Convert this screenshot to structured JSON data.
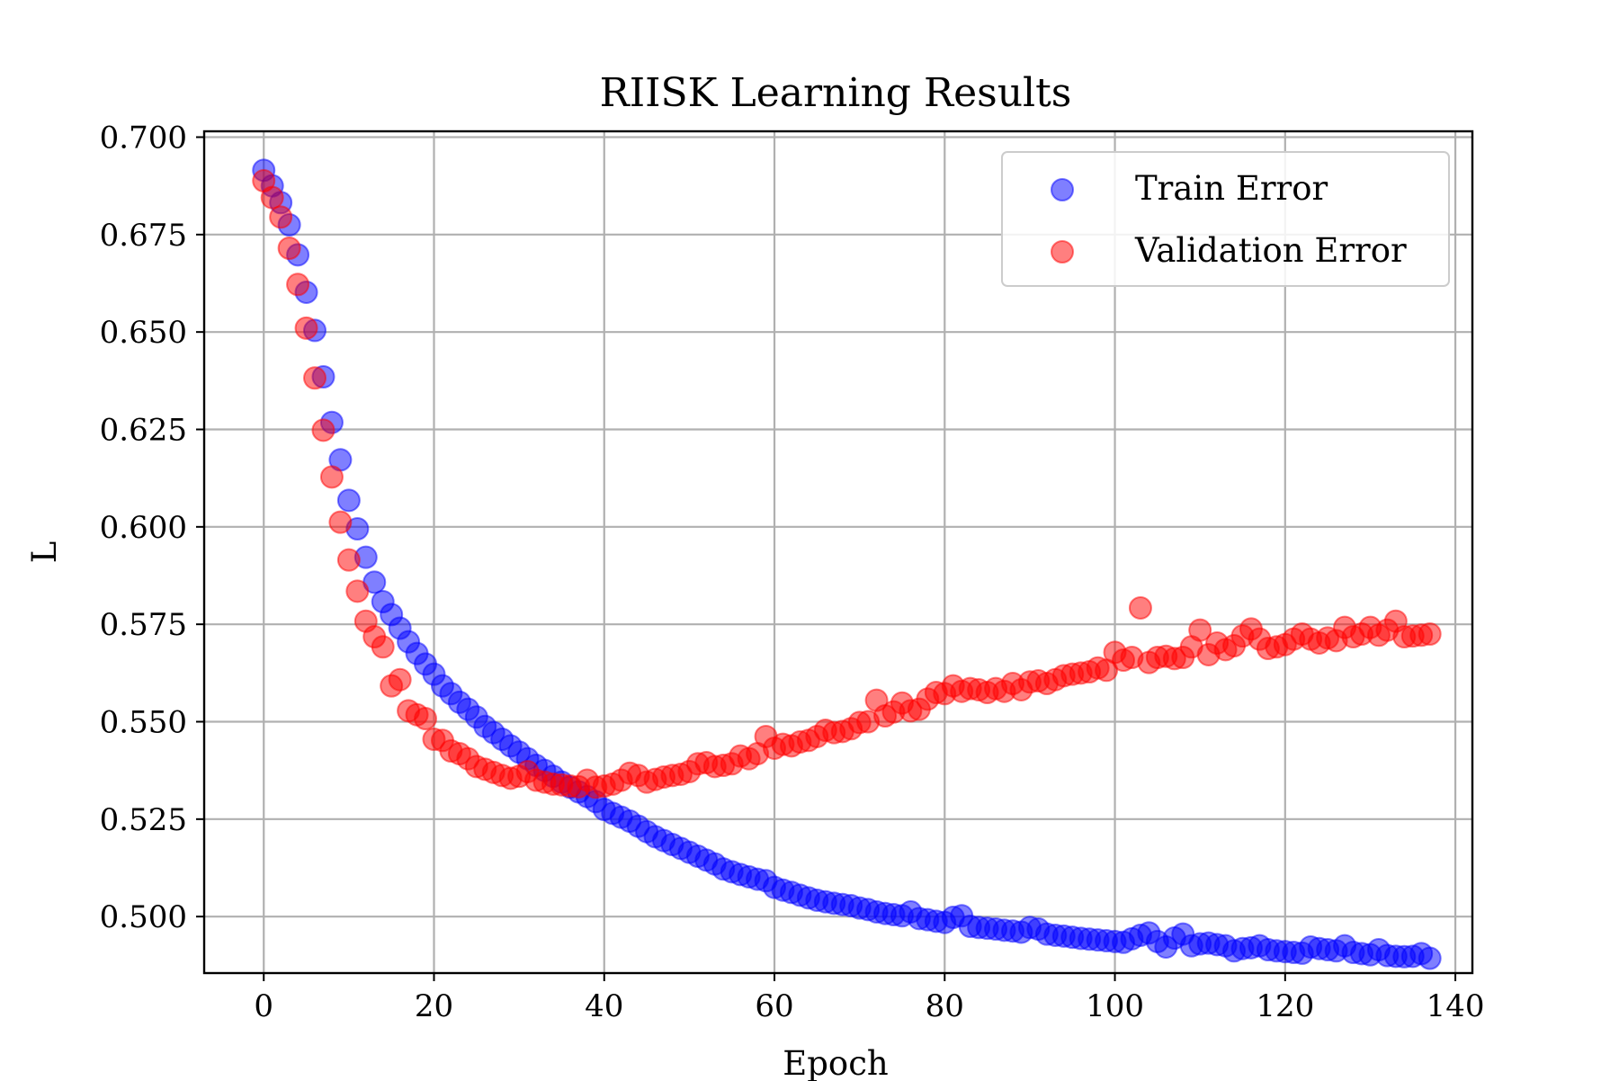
{
  "chart_data": {
    "type": "scatter",
    "title": "RIISK Learning Results",
    "xlabel": "Epoch",
    "ylabel": "L",
    "xlim": [
      -7,
      142
    ],
    "ylim": [
      0.4855,
      0.7015
    ],
    "xticks": [
      0,
      20,
      40,
      60,
      80,
      100,
      120,
      140
    ],
    "xtick_labels": [
      "0",
      "20",
      "40",
      "60",
      "80",
      "100",
      "120",
      "140"
    ],
    "yticks": [
      0.5,
      0.525,
      0.55,
      0.575,
      0.6,
      0.625,
      0.65,
      0.675,
      0.7
    ],
    "ytick_labels": [
      "0.500",
      "0.525",
      "0.550",
      "0.575",
      "0.600",
      "0.625",
      "0.650",
      "0.675",
      "0.700"
    ],
    "grid": true,
    "legend_position": "upper right",
    "series": [
      {
        "name": "Train Error",
        "color": "#0000ff",
        "x": [
          0,
          1,
          2,
          3,
          4,
          5,
          6,
          7,
          8,
          9,
          10,
          11,
          12,
          13,
          14,
          15,
          16,
          17,
          18,
          19,
          20,
          21,
          22,
          23,
          24,
          25,
          26,
          27,
          28,
          29,
          30,
          31,
          32,
          33,
          34,
          35,
          36,
          37,
          38,
          39,
          40,
          41,
          42,
          43,
          44,
          45,
          46,
          47,
          48,
          49,
          50,
          51,
          52,
          53,
          54,
          55,
          56,
          57,
          58,
          59,
          60,
          61,
          62,
          63,
          64,
          65,
          66,
          67,
          68,
          69,
          70,
          71,
          72,
          73,
          74,
          75,
          76,
          77,
          78,
          79,
          80,
          81,
          82,
          83,
          84,
          85,
          86,
          87,
          88,
          89,
          90,
          91,
          92,
          93,
          94,
          95,
          96,
          97,
          98,
          99,
          100,
          101,
          102,
          103,
          104,
          105,
          106,
          107,
          108,
          109,
          110,
          111,
          112,
          113,
          114,
          115,
          116,
          117,
          118,
          119,
          120,
          121,
          122,
          123,
          124,
          125,
          126,
          127,
          128,
          129,
          130,
          131,
          132,
          133,
          134,
          135,
          136,
          137
        ],
        "y": [
          0.6915,
          0.6875,
          0.6832,
          0.6775,
          0.6698,
          0.6602,
          0.6504,
          0.6385,
          0.6268,
          0.6172,
          0.6068,
          0.5995,
          0.5922,
          0.5858,
          0.5808,
          0.5775,
          0.574,
          0.5705,
          0.5675,
          0.5648,
          0.5622,
          0.5592,
          0.5572,
          0.555,
          0.5532,
          0.5512,
          0.5488,
          0.5472,
          0.5455,
          0.5438,
          0.5422,
          0.5405,
          0.5388,
          0.5375,
          0.536,
          0.5345,
          0.5332,
          0.532,
          0.5308,
          0.5295,
          0.5275,
          0.5265,
          0.5255,
          0.5245,
          0.5232,
          0.5218,
          0.5205,
          0.5195,
          0.5185,
          0.5175,
          0.5165,
          0.5155,
          0.5145,
          0.5135,
          0.5122,
          0.5115,
          0.5108,
          0.5102,
          0.5096,
          0.5092,
          0.5075,
          0.5068,
          0.5062,
          0.5055,
          0.5048,
          0.5042,
          0.5038,
          0.5034,
          0.5031,
          0.5028,
          0.5022,
          0.5018,
          0.5012,
          0.5008,
          0.5005,
          0.5002,
          0.5012,
          0.4995,
          0.4992,
          0.4988,
          0.4985,
          0.4998,
          0.5002,
          0.4975,
          0.4972,
          0.497,
          0.4968,
          0.4965,
          0.4963,
          0.496,
          0.4972,
          0.4968,
          0.4955,
          0.4952,
          0.495,
          0.4947,
          0.4944,
          0.4942,
          0.494,
          0.4938,
          0.4936,
          0.4934,
          0.4943,
          0.4952,
          0.4958,
          0.4936,
          0.4922,
          0.4945,
          0.4955,
          0.4925,
          0.493,
          0.4932,
          0.4928,
          0.4925,
          0.4912,
          0.4918,
          0.492,
          0.4925,
          0.4915,
          0.4912,
          0.491,
          0.4908,
          0.4906,
          0.4922,
          0.4918,
          0.4915,
          0.4912,
          0.4925,
          0.4908,
          0.4905,
          0.4902,
          0.4915,
          0.49,
          0.4898,
          0.4897,
          0.4898,
          0.4905,
          0.4893
        ]
      },
      {
        "name": "Validation Error",
        "color": "#ff0000",
        "x": [
          0,
          1,
          2,
          3,
          4,
          5,
          6,
          7,
          8,
          9,
          10,
          11,
          12,
          13,
          14,
          15,
          16,
          17,
          18,
          19,
          20,
          21,
          22,
          23,
          24,
          25,
          26,
          27,
          28,
          29,
          30,
          31,
          32,
          33,
          34,
          35,
          36,
          37,
          38,
          39,
          40,
          41,
          42,
          43,
          44,
          45,
          46,
          47,
          48,
          49,
          50,
          51,
          52,
          53,
          54,
          55,
          56,
          57,
          58,
          59,
          60,
          61,
          62,
          63,
          64,
          65,
          66,
          67,
          68,
          69,
          70,
          71,
          72,
          73,
          74,
          75,
          76,
          77,
          78,
          79,
          80,
          81,
          82,
          83,
          84,
          85,
          86,
          87,
          88,
          89,
          90,
          91,
          92,
          93,
          94,
          95,
          96,
          97,
          98,
          99,
          100,
          101,
          102,
          103,
          104,
          105,
          106,
          107,
          108,
          109,
          110,
          111,
          112,
          113,
          114,
          115,
          116,
          117,
          118,
          119,
          120,
          121,
          122,
          123,
          124,
          125,
          126,
          127,
          128,
          129,
          130,
          131,
          132,
          133,
          134,
          135,
          136,
          137
        ],
        "y": [
          0.6888,
          0.6845,
          0.6795,
          0.6715,
          0.6622,
          0.651,
          0.6382,
          0.6248,
          0.6128,
          0.6012,
          0.5915,
          0.5835,
          0.5758,
          0.5718,
          0.5692,
          0.5592,
          0.5608,
          0.5528,
          0.5518,
          0.5508,
          0.5455,
          0.5452,
          0.5425,
          0.5418,
          0.5405,
          0.5385,
          0.5378,
          0.537,
          0.5362,
          0.5355,
          0.536,
          0.5372,
          0.535,
          0.5345,
          0.534,
          0.5338,
          0.5335,
          0.5333,
          0.535,
          0.5332,
          0.5335,
          0.534,
          0.535,
          0.5368,
          0.5362,
          0.5345,
          0.5352,
          0.5358,
          0.5362,
          0.5365,
          0.5372,
          0.5392,
          0.5395,
          0.5385,
          0.5388,
          0.5392,
          0.5412,
          0.5405,
          0.5418,
          0.5462,
          0.5432,
          0.5442,
          0.5438,
          0.5448,
          0.5452,
          0.5462,
          0.5478,
          0.5472,
          0.5475,
          0.5482,
          0.5498,
          0.55,
          0.5555,
          0.5515,
          0.5525,
          0.5548,
          0.5528,
          0.5532,
          0.5558,
          0.5575,
          0.5572,
          0.5592,
          0.5578,
          0.5585,
          0.5582,
          0.5575,
          0.5585,
          0.5578,
          0.5598,
          0.5582,
          0.5602,
          0.5605,
          0.5598,
          0.5608,
          0.5618,
          0.5622,
          0.5625,
          0.5628,
          0.5638,
          0.5632,
          0.5678,
          0.5658,
          0.5665,
          0.5792,
          0.5652,
          0.5665,
          0.5668,
          0.5662,
          0.5665,
          0.5692,
          0.5735,
          0.5672,
          0.5702,
          0.5685,
          0.5695,
          0.572,
          0.5738,
          0.5712,
          0.5688,
          0.5692,
          0.5698,
          0.5712,
          0.5725,
          0.5712,
          0.5702,
          0.5715,
          0.5708,
          0.5742,
          0.5718,
          0.5725,
          0.5742,
          0.5722,
          0.5735,
          0.5758,
          0.5718,
          0.572,
          0.5722,
          0.5725
        ]
      }
    ]
  }
}
